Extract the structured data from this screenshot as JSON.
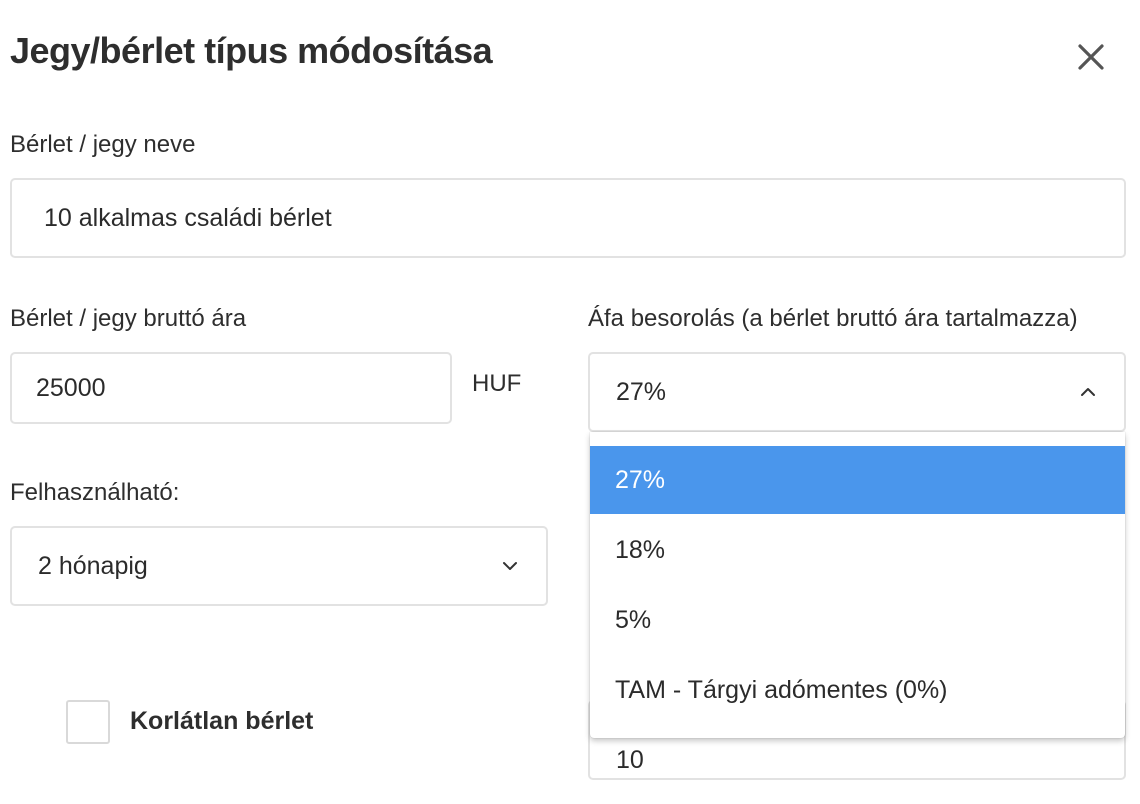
{
  "dialog": {
    "title": "Jegy/bérlet típus módosítása",
    "close_icon": "close-icon"
  },
  "name": {
    "label": "Bérlet / jegy neve",
    "value": "10 alkalmas családi bérlet"
  },
  "price": {
    "label": "Bérlet / jegy bruttó ára",
    "value": "25000",
    "currency": "HUF"
  },
  "vat": {
    "label": "Áfa besorolás (a bérlet bruttó ára tartalmazza)",
    "selected": "27%",
    "open": true,
    "options": [
      "27%",
      "18%",
      "5%",
      "TAM - Tárgyi adómentes (0%)"
    ],
    "highlight_color": "#4a96ec"
  },
  "usable": {
    "label": "Felhasználható:",
    "value": "2 hónapig"
  },
  "unlimited": {
    "label": "Korlátlan bérlet",
    "checked": false
  },
  "occasions": {
    "value": "10"
  }
}
